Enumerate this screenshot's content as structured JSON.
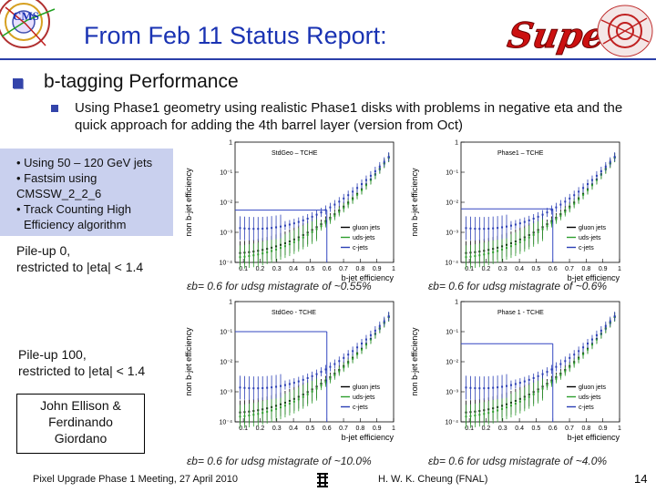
{
  "header": {
    "title": "From Feb 11 Status Report:",
    "cms_logo_text": "CMS",
    "super_logo_text": "Super"
  },
  "bullet1": "b-tagging Performance",
  "bullet2": "Using Phase1 geometry using realistic Phase1 disks with problems in negative eta and the quick approach for adding the 4th barrel layer (version from Oct)",
  "info": [
    "• Using 50 – 120 GeV jets",
    "• Fastsim using",
    "CMSSW_2_2_6",
    "• Track Counting High",
    "  Efficiency algorithm"
  ],
  "pileup0": [
    "Pile-up 0,",
    "restricted to |eta| < 1.4"
  ],
  "pileup100": [
    "Pile-up 100,",
    "restricted to |eta| < 1.4"
  ],
  "authors": [
    "John Ellison &",
    "Ferdinando",
    "Giordano"
  ],
  "plots": [
    {
      "label": "StdGeo – TCHE",
      "caption": "εb= 0.6 for udsg mistagrate of ~0.55%"
    },
    {
      "label": "Phase1 – TCHE",
      "caption": "εb= 0.6 for udsg mistagrate of ~0.6%"
    },
    {
      "label": "StdGeo - TCHE",
      "caption": "εb= 0.6 for udsg mistagrate of ~10.0%"
    },
    {
      "label": "Phase 1 - TCHE",
      "caption": "εb= 0.6 for udsg mistagrate of ~4.0%"
    }
  ],
  "legend": [
    "gluon jets",
    "uds-jets",
    "c-jets"
  ],
  "axis": {
    "ylabel": "non b-jet efficiency",
    "xlabel": "b-jet efficiency",
    "xticks": [
      "0.1",
      "0.2",
      "0.3",
      "0.4",
      "0.5",
      "0.6",
      "0.7",
      "0.8",
      "0.9",
      "1"
    ],
    "yticks": [
      "1",
      "10⁻¹",
      "10⁻²",
      "10⁻³",
      "10⁻⁴"
    ]
  },
  "colors": {
    "title": "#1a33b3",
    "gluon": "#000000",
    "uds": "#2e9e2e",
    "c": "#2b3fb5",
    "label": "#3a50c8",
    "cut": "#3347c2"
  },
  "footer": {
    "left": "Pixel Upgrade Phase 1 Meeting, 27 April 2010",
    "center": "H. W. K. Cheung (FNAL)",
    "page": "14"
  }
}
